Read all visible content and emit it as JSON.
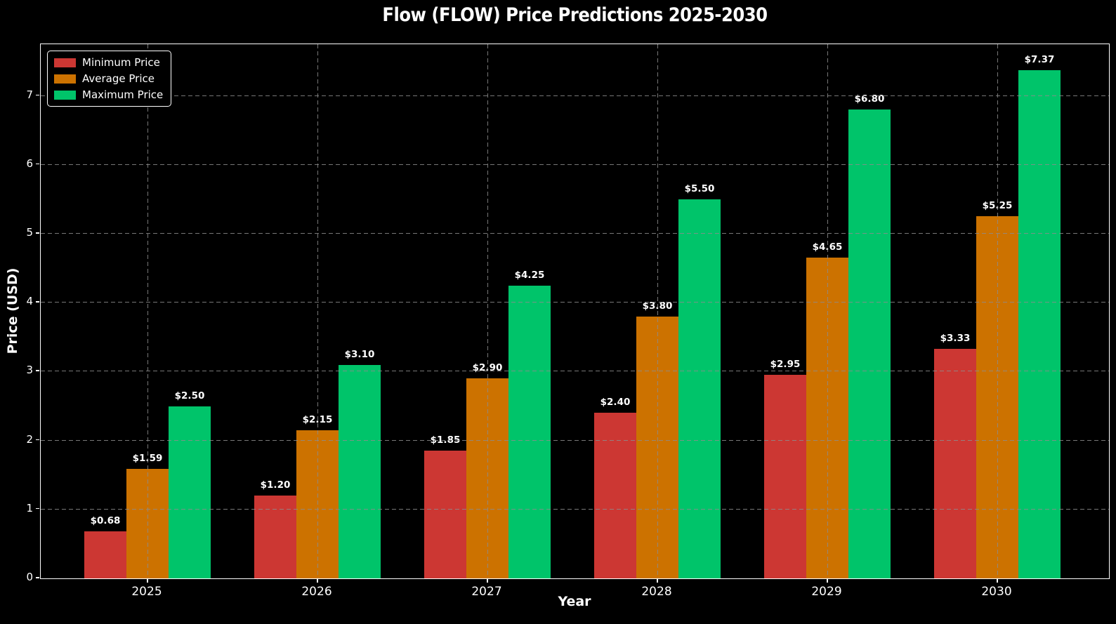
{
  "title": "Flow (FLOW) Price Predictions 2025-2030",
  "colors": {
    "background": "#000000",
    "text": "#ffffff",
    "spine": "#ffffff",
    "grid": "#8c8c8c",
    "min_bar": "#cc3733",
    "avg_bar": "#cc7200",
    "max_bar": "#00c46a"
  },
  "legend": {
    "position": "upper left",
    "entries": [
      {
        "label": "Minimum Price",
        "color": "#cc3733"
      },
      {
        "label": "Average Price",
        "color": "#cc7200"
      },
      {
        "label": "Maximum Price",
        "color": "#00c46a"
      }
    ]
  },
  "chart_data": {
    "type": "bar",
    "title": "Flow (FLOW) Price Predictions 2025-2030",
    "xlabel": "Year",
    "ylabel": "Price (USD)",
    "categories": [
      "2025",
      "2026",
      "2027",
      "2028",
      "2029",
      "2030"
    ],
    "series": [
      {
        "name": "Minimum Price",
        "color": "#cc3733",
        "values": [
          0.68,
          1.2,
          1.85,
          2.4,
          2.95,
          3.33
        ],
        "labels": [
          "$0.68",
          "$1.20",
          "$1.85",
          "$2.40",
          "$2.95",
          "$3.33"
        ]
      },
      {
        "name": "Average Price",
        "color": "#cc7200",
        "values": [
          1.59,
          2.15,
          2.9,
          3.8,
          4.65,
          5.25
        ],
        "labels": [
          "$1.59",
          "$2.15",
          "$2.90",
          "$3.80",
          "$4.65",
          "$5.25"
        ]
      },
      {
        "name": "Maximum Price",
        "color": "#00c46a",
        "values": [
          2.5,
          3.1,
          4.25,
          5.5,
          6.8,
          7.37
        ],
        "labels": [
          "$2.50",
          "$3.10",
          "$4.25",
          "$5.50",
          "$6.80",
          "$7.37"
        ]
      }
    ],
    "yticks": [
      "0",
      "1",
      "2",
      "3",
      "4",
      "5",
      "6",
      "7"
    ],
    "ylim": [
      0,
      7.77
    ],
    "grid": true,
    "grid_style": "dashed",
    "legend_position": "upper left"
  }
}
